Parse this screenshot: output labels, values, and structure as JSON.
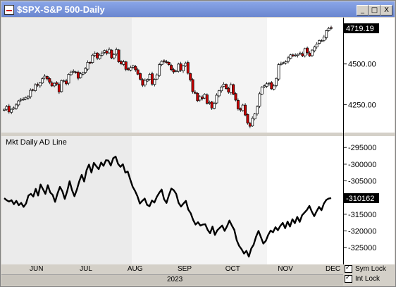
{
  "window": {
    "title": "$SPX-S&P 500-Daily",
    "buttons": {
      "minimize": "_",
      "maximize": "□",
      "close": "X"
    }
  },
  "price_panel": {
    "last_value": "4719.19",
    "y_ticks": [
      "4500.00",
      "4250.00"
    ]
  },
  "ad_panel": {
    "label": "Mkt Daily AD Line",
    "last_value": "-310162",
    "y_ticks": [
      "-295000",
      "-300000",
      "-305000",
      "-315000",
      "-320000",
      "-325000"
    ]
  },
  "time_axis": {
    "months": [
      "JUN",
      "JUL",
      "AUG",
      "SEP",
      "OCT",
      "NOV",
      "DEC"
    ],
    "year": "2023"
  },
  "locks": {
    "sym_lock": "Sym Lock",
    "int_lock": "Int Lock"
  },
  "colors": {
    "up_candle": "#ffffff",
    "down_candle": "#cc0000",
    "line": "#000000",
    "panel_bg": "#ffffff",
    "shade": "#ebebeb"
  },
  "chart_data": [
    {
      "type": "candlestick",
      "title": "$SPX-S&P 500-Daily",
      "ylim": [
        4100,
        4750
      ],
      "y_ticks": [
        4500,
        4250
      ],
      "x_labels": [
        "JUN",
        "JUL",
        "AUG",
        "SEP",
        "OCT",
        "NOV",
        "DEC"
      ],
      "close": [
        4221,
        4238,
        4205,
        4221,
        4230,
        4248,
        4273,
        4282,
        4283,
        4294,
        4299,
        4338,
        4338,
        4372,
        4369,
        4383,
        4409,
        4425,
        4408,
        4388,
        4365,
        4381,
        4376,
        4328,
        4398,
        4396,
        4378,
        4436,
        4450,
        4455,
        4450,
        4412,
        4439,
        4446,
        4472,
        4510,
        4505,
        4554,
        4565,
        4536,
        4554,
        4567,
        4582,
        4566,
        4589,
        4537,
        4558,
        4588,
        4513,
        4501,
        4513,
        4467,
        4464,
        4478,
        4489,
        4464,
        4437,
        4406,
        4369,
        4399,
        4405,
        4436,
        4376,
        4405,
        4433,
        4496,
        4516,
        4515,
        4508,
        4496,
        4465,
        4451,
        4457,
        4499,
        4461,
        4488,
        4505,
        4443,
        4402,
        4330,
        4320,
        4274,
        4299,
        4288,
        4314,
        4258,
        4263,
        4229,
        4258,
        4308,
        4335,
        4358,
        4376,
        4349,
        4327,
        4373,
        4314,
        4278,
        4224,
        4217,
        4247,
        4186,
        4137,
        4117,
        4166,
        4193,
        4237,
        4317,
        4358,
        4366,
        4378,
        4382,
        4347,
        4365,
        4411,
        4496,
        4502,
        4508,
        4514,
        4538,
        4556,
        4550,
        4554,
        4559,
        4567,
        4550,
        4594,
        4569,
        4549,
        4585,
        4604,
        4622,
        4644,
        4643,
        4666,
        4705,
        4719,
        4719
      ],
      "last": 4719.19
    },
    {
      "type": "line",
      "title": "Mkt Daily AD Line",
      "ylim": [
        -329000,
        -292000
      ],
      "y_ticks": [
        -295000,
        -300000,
        -305000,
        -315000,
        -320000,
        -325000
      ],
      "values": [
        -310200,
        -310800,
        -311200,
        -310800,
        -312000,
        -311000,
        -312300,
        -311600,
        -312800,
        -311800,
        -309400,
        -308900,
        -309700,
        -307400,
        -309400,
        -306100,
        -307500,
        -308900,
        -306300,
        -308500,
        -309200,
        -311300,
        -308800,
        -306800,
        -308100,
        -310400,
        -308100,
        -305100,
        -307800,
        -309600,
        -307600,
        -305100,
        -303200,
        -305200,
        -301800,
        -300100,
        -302500,
        -299600,
        -300600,
        -301500,
        -299500,
        -300500,
        -298800,
        -298900,
        -300400,
        -298200,
        -297700,
        -299900,
        -300800,
        -300000,
        -302500,
        -302200,
        -304500,
        -306700,
        -308000,
        -309600,
        -311800,
        -311000,
        -310300,
        -312200,
        -312600,
        -310900,
        -311500,
        -309800,
        -308600,
        -307600,
        -310500,
        -311600,
        -309300,
        -307300,
        -307800,
        -308900,
        -311600,
        -312700,
        -311800,
        -311000,
        -313600,
        -314700,
        -316700,
        -318100,
        -317400,
        -318400,
        -318100,
        -318000,
        -319700,
        -320700,
        -318700,
        -321200,
        -319800,
        -319100,
        -318400,
        -320000,
        -318600,
        -316900,
        -318400,
        -319700,
        -322800,
        -324500,
        -325500,
        -326800,
        -326000,
        -327700,
        -325300,
        -324100,
        -321700,
        -320000,
        -321900,
        -323800,
        -323000,
        -321200,
        -319900,
        -320400,
        -318900,
        -319800,
        -318500,
        -317600,
        -319200,
        -317200,
        -318700,
        -316500,
        -317700,
        -315800,
        -317300,
        -315300,
        -314500,
        -313700,
        -312500,
        -314200,
        -315600,
        -314100,
        -312800,
        -313800,
        -311800,
        -310700,
        -310300,
        -310162
      ],
      "last": -310162
    }
  ]
}
